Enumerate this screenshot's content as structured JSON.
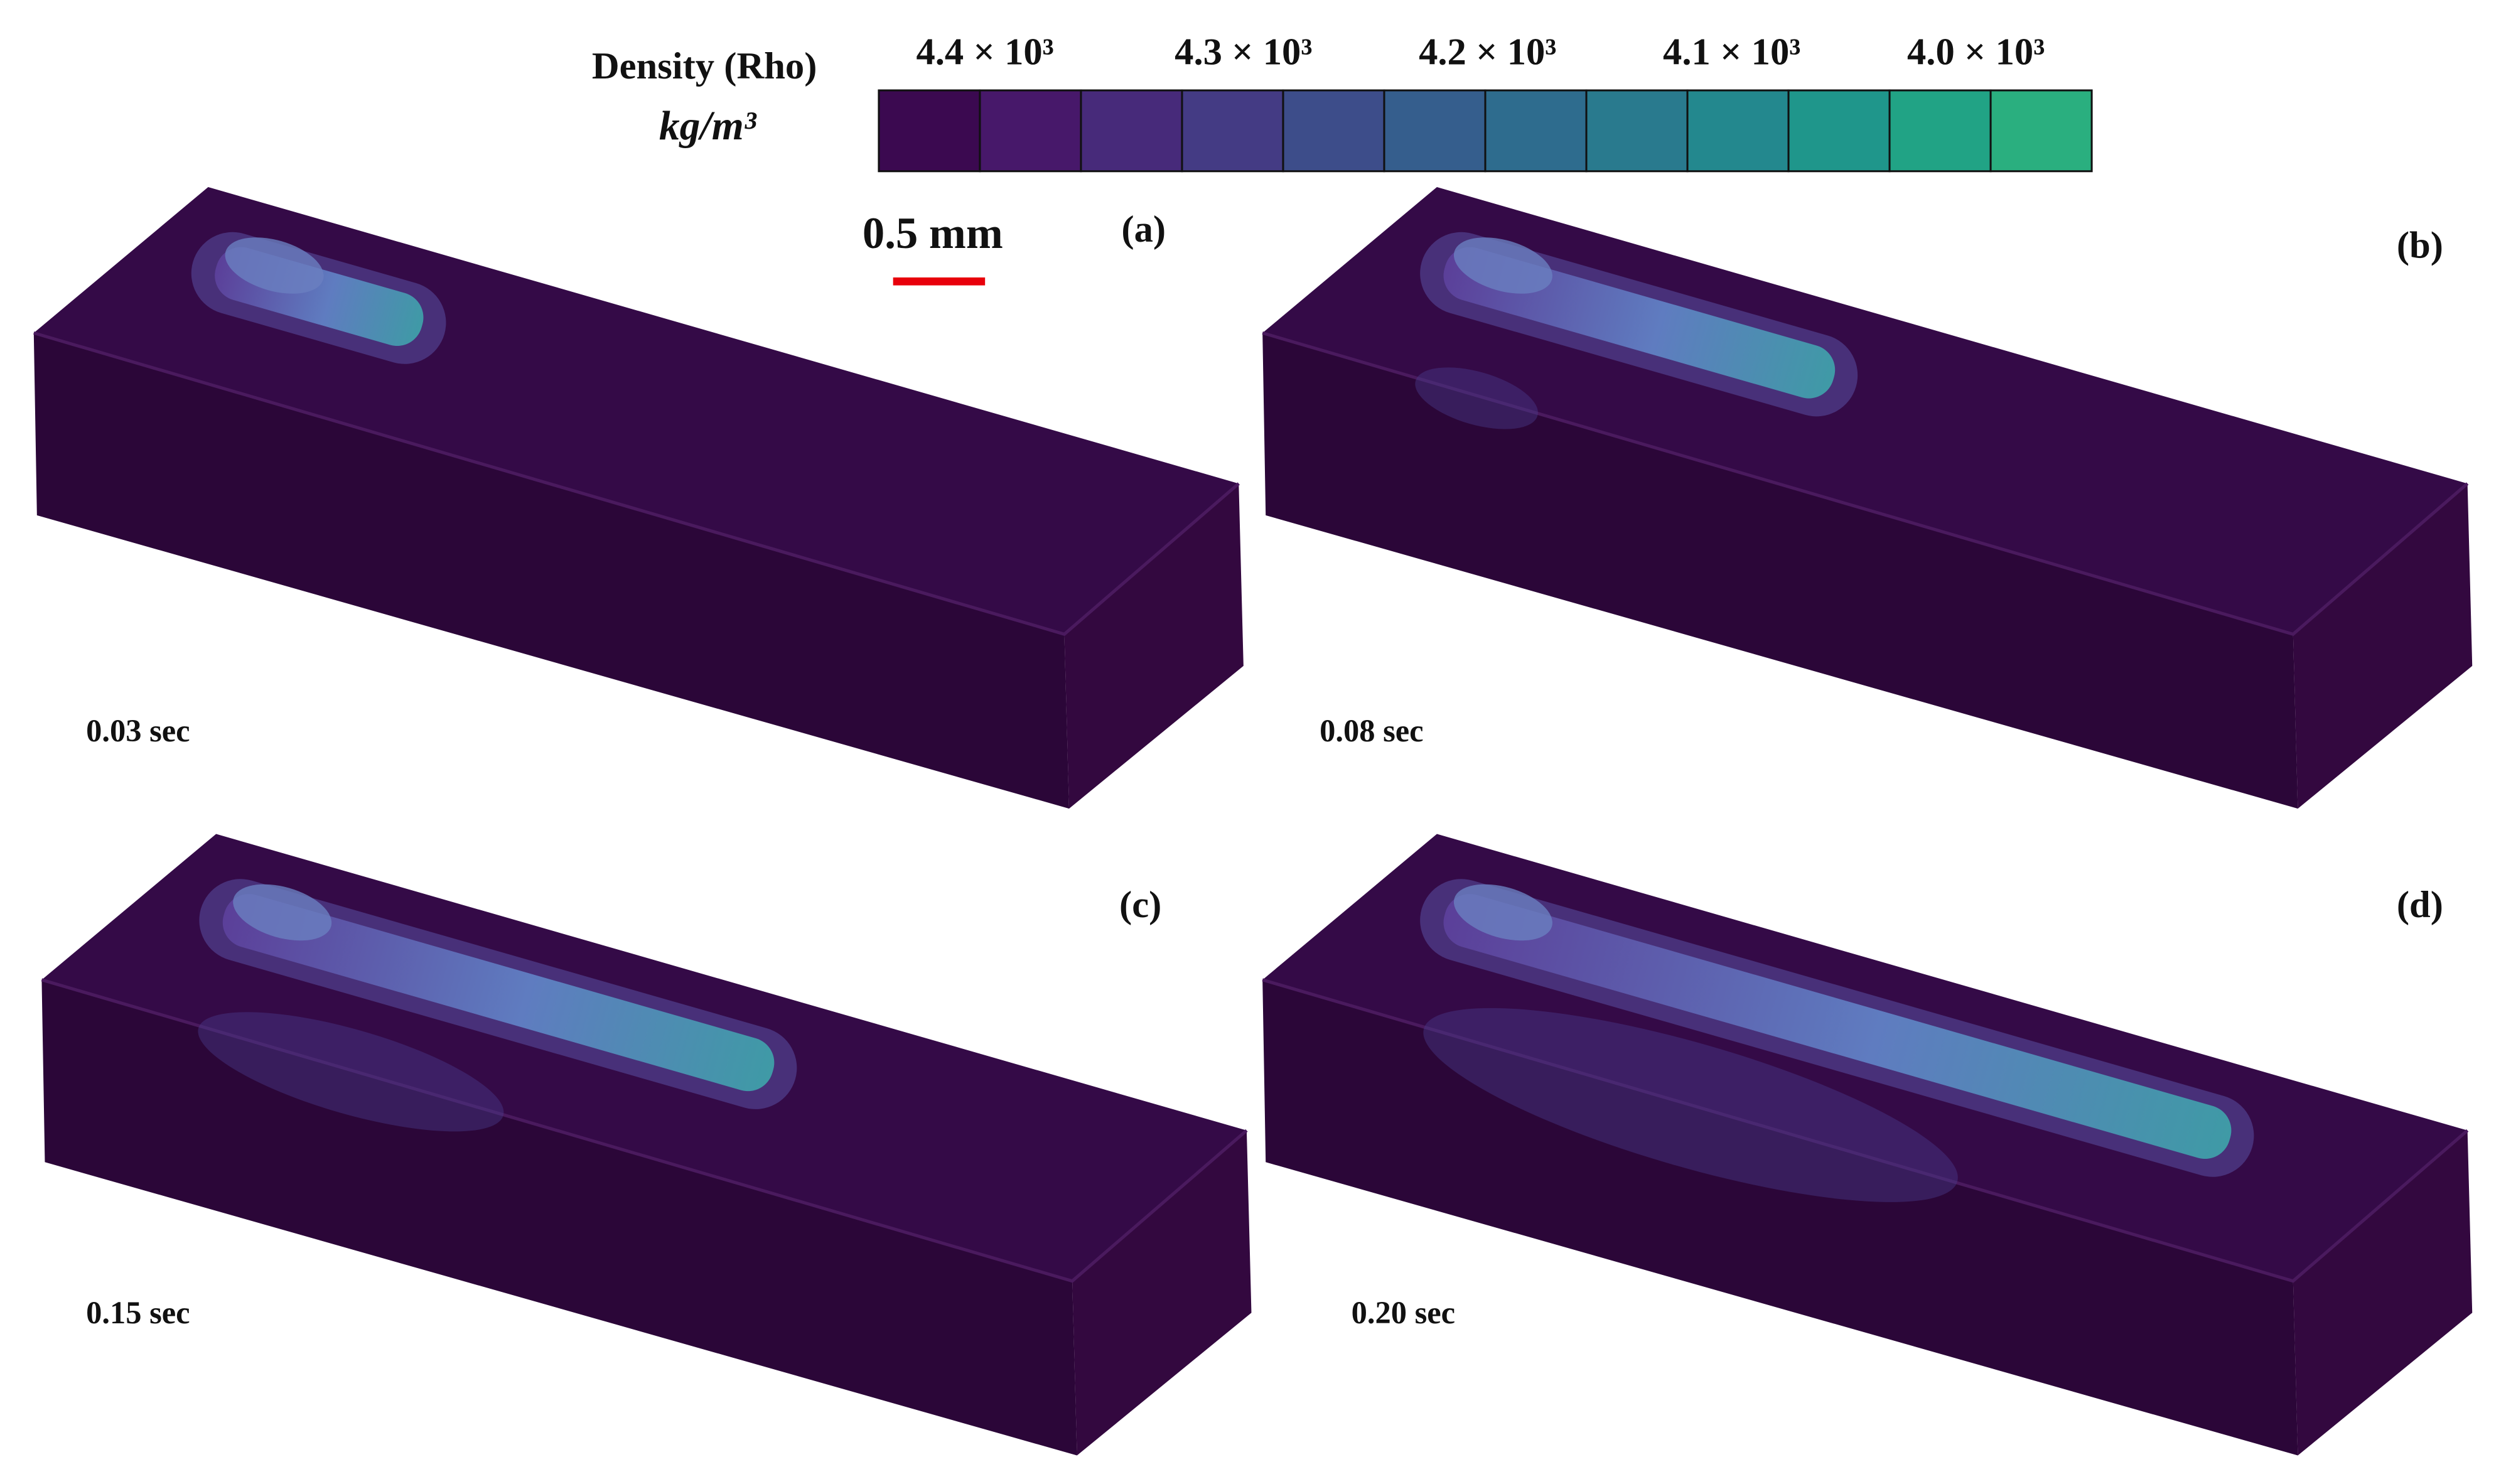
{
  "colorbar": {
    "title": "Density (Rho)",
    "unit": "kg/m³",
    "ticks": [
      "4.4 × 10³",
      "4.3 × 10³",
      "4.2 × 10³",
      "4.1 × 10³",
      "4.0 × 10³"
    ],
    "colors": [
      "#3b0950",
      "#47186a",
      "#472a7a",
      "#443b84",
      "#3d4d8a",
      "#355e8d",
      "#2e6c8e",
      "#297a8e",
      "#23888e",
      "#1f968b",
      "#21a385",
      "#2aaf7f"
    ]
  },
  "scale_bar": {
    "label": "0.5 mm",
    "color": "#e8000b"
  },
  "panels": [
    {
      "label": "(a)",
      "time": "0.03 sec"
    },
    {
      "label": "(b)",
      "time": "0.08 sec"
    },
    {
      "label": "(c)",
      "time": "0.15 sec"
    },
    {
      "label": "(d)",
      "time": "0.20 sec"
    }
  ]
}
